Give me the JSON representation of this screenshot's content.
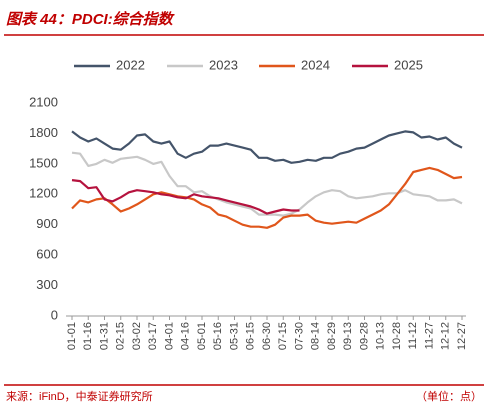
{
  "chart_data": {
    "type": "line",
    "title": "图表 44：PDCI:综合指数",
    "source": "来源：iFinD，中泰证券研究所",
    "unit": "（单位：点）",
    "categories": [
      "01-01",
      null,
      "01-16",
      null,
      "01-31",
      null,
      "02-15",
      null,
      "03-02",
      null,
      "03-17",
      null,
      "04-01",
      null,
      "04-16",
      null,
      "05-01",
      null,
      "05-16",
      null,
      "05-31",
      null,
      "06-15",
      null,
      "06-30",
      null,
      "07-15",
      null,
      "07-30",
      null,
      "08-14",
      null,
      "08-29",
      null,
      "09-13",
      null,
      "09-28",
      null,
      "10-13",
      null,
      "10-28",
      null,
      "11-12",
      null,
      "11-27",
      null,
      "12-12",
      null,
      "12-27"
    ],
    "series": [
      {
        "name": "2022",
        "color": "#44546a",
        "values": [
          1820,
          1760,
          1720,
          1750,
          1700,
          1650,
          1640,
          1700,
          1780,
          1790,
          1720,
          1700,
          1720,
          1600,
          1560,
          1600,
          1620,
          1680,
          1680,
          1700,
          1680,
          1660,
          1640,
          1560,
          1560,
          1530,
          1540,
          1510,
          1520,
          1540,
          1530,
          1560,
          1560,
          1600,
          1620,
          1650,
          1660,
          1700,
          1740,
          1780,
          1800,
          1820,
          1810,
          1760,
          1770,
          1740,
          1760,
          1700,
          1660
        ]
      },
      {
        "name": "2023",
        "color": "#c8c8c8",
        "values": [
          1610,
          1600,
          1480,
          1500,
          1540,
          1510,
          1550,
          1560,
          1570,
          1540,
          1500,
          1520,
          1380,
          1280,
          1280,
          1220,
          1230,
          1180,
          1150,
          1120,
          1100,
          1080,
          1060,
          1000,
          1000,
          1000,
          990,
          1010,
          1050,
          1120,
          1180,
          1220,
          1240,
          1230,
          1180,
          1160,
          1170,
          1180,
          1200,
          1210,
          1210,
          1240,
          1200,
          1190,
          1180,
          1140,
          1140,
          1150,
          1110
        ]
      },
      {
        "name": "2024",
        "color": "#e0561b",
        "values": [
          1060,
          1140,
          1120,
          1150,
          1160,
          1100,
          1030,
          1060,
          1100,
          1150,
          1200,
          1220,
          1200,
          1180,
          1170,
          1150,
          1100,
          1070,
          1000,
          980,
          940,
          900,
          880,
          880,
          870,
          900,
          970,
          990,
          990,
          1000,
          940,
          920,
          910,
          920,
          930,
          920,
          960,
          1000,
          1040,
          1100,
          1200,
          1300,
          1420,
          1440,
          1460,
          1440,
          1400,
          1360,
          1370
        ]
      },
      {
        "name": "2025",
        "color": "#b5123e",
        "values": [
          1340,
          1330,
          1260,
          1270,
          1150,
          1130,
          1170,
          1220,
          1240,
          1230,
          1220,
          1200,
          1190,
          1170,
          1160,
          1200,
          1180,
          1170,
          1160,
          1140,
          1120,
          1100,
          1080,
          1050,
          1010,
          1030,
          1050,
          1040,
          1040,
          null,
          null,
          null,
          null,
          null,
          null,
          null,
          null,
          null,
          null,
          null,
          null,
          null,
          null,
          null,
          null,
          null,
          null,
          null,
          null
        ]
      }
    ],
    "ylim": [
      0,
      2100
    ],
    "yticks": [
      0,
      300,
      600,
      900,
      1200,
      1500,
      1800,
      2100
    ]
  }
}
